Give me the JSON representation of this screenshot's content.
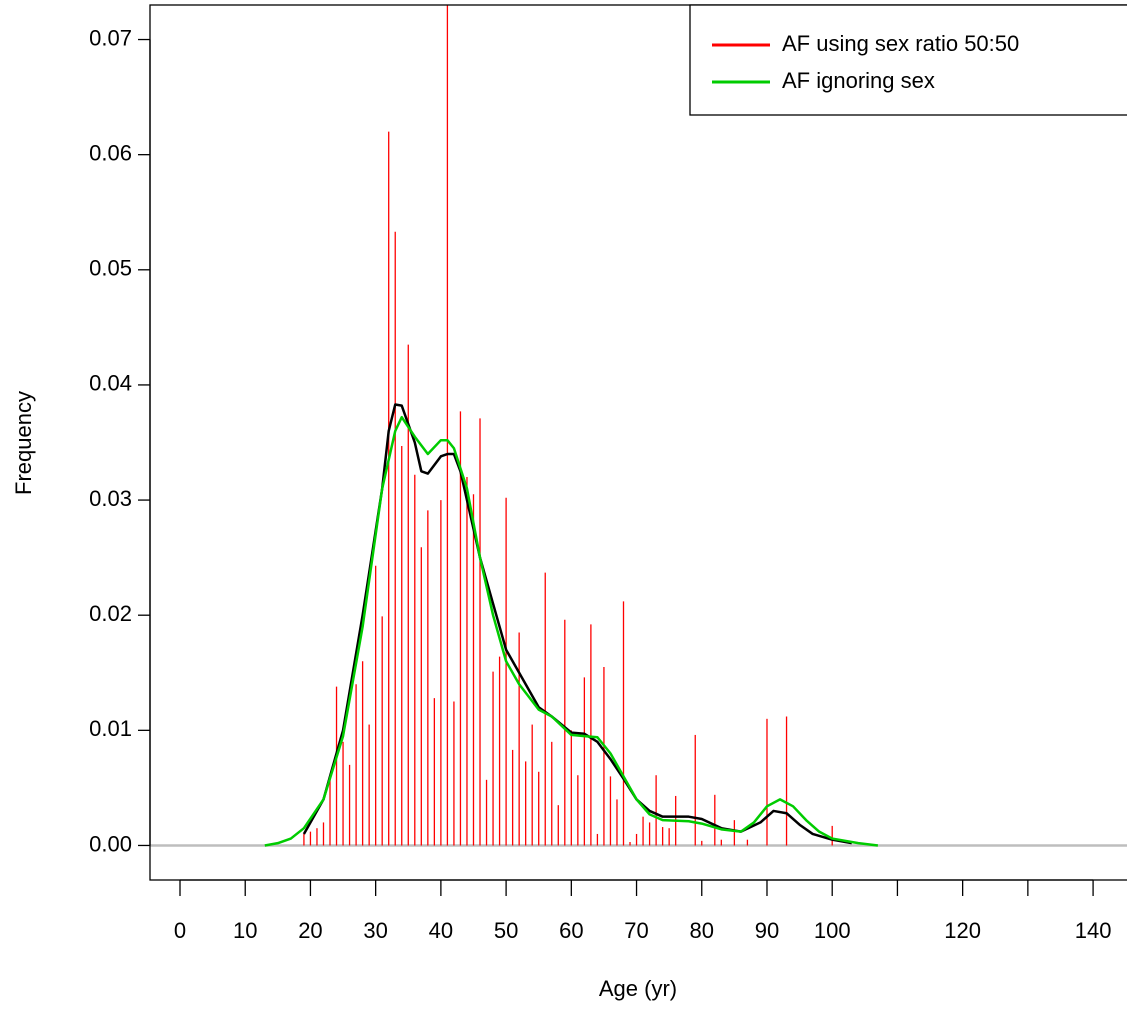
{
  "chart_data": {
    "type": "spike-density",
    "xlabel": "Age (yr)",
    "ylabel": "Frequency",
    "xlim": [
      -4.6,
      145.2
    ],
    "ylim": [
      -0.003,
      0.073
    ],
    "xticks": [
      0,
      10,
      20,
      30,
      40,
      50,
      60,
      70,
      80,
      90,
      100,
      120,
      140
    ],
    "xticks_unlabeled": [
      110,
      130
    ],
    "yticks": [
      {
        "value": 0,
        "label": "0.00"
      },
      0.01,
      0.02,
      0.03,
      0.04,
      0.05,
      0.06,
      0.07
    ],
    "hline": 0,
    "hline_color": "#bebebe",
    "legend": "top-right",
    "series": [
      {
        "name": "AF using sex ratio 50:50",
        "color": "#ff0000",
        "style": "spikes",
        "x": [
          19,
          20,
          21,
          22,
          23,
          24,
          25,
          26,
          27,
          28,
          29,
          30,
          31,
          32,
          33,
          34,
          35,
          36,
          37,
          38,
          39,
          40,
          41,
          42,
          43,
          44,
          45,
          46,
          47,
          48,
          49,
          50,
          51,
          52,
          53,
          54,
          55,
          56,
          57,
          58,
          59,
          60,
          61,
          62,
          63,
          64,
          65,
          66,
          67,
          68,
          69,
          70,
          71,
          72,
          73,
          74,
          75,
          76,
          79,
          80,
          82,
          83,
          85,
          87,
          90,
          93,
          100
        ],
        "values": [
          0.001,
          0.0012,
          0.0015,
          0.002,
          0.006,
          0.0138,
          0.009,
          0.007,
          0.014,
          0.016,
          0.0105,
          0.0243,
          0.0199,
          0.062,
          0.0533,
          0.0347,
          0.0435,
          0.0322,
          0.0259,
          0.0291,
          0.0128,
          0.03,
          0.075,
          0.0125,
          0.0377,
          0.032,
          0.0305,
          0.0371,
          0.0057,
          0.0151,
          0.0164,
          0.0302,
          0.0083,
          0.0185,
          0.0073,
          0.0105,
          0.0064,
          0.0237,
          0.009,
          0.0035,
          0.0196,
          0.01,
          0.0061,
          0.0146,
          0.0192,
          0.001,
          0.0155,
          0.006,
          0.004,
          0.0212,
          0.0003,
          0.001,
          0.0025,
          0.002,
          0.0061,
          0.0016,
          0.0015,
          0.0043,
          0.0096,
          0.0004,
          0.0044,
          0.0005,
          0.0022,
          0.0005,
          0.011,
          0.0112,
          0.0017
        ]
      },
      {
        "color": "#000000",
        "style": "line",
        "x": [
          19,
          22,
          25,
          28,
          31,
          32,
          33,
          34,
          36,
          37,
          38,
          40,
          41,
          42,
          43,
          44,
          46,
          48,
          50,
          52,
          55,
          57,
          60,
          62,
          64,
          66,
          68,
          70,
          72,
          74,
          78,
          80,
          83,
          86,
          89,
          91,
          93,
          95,
          97,
          100,
          103
        ],
        "values": [
          0.001,
          0.004,
          0.01,
          0.02,
          0.031,
          0.036,
          0.0383,
          0.0382,
          0.035,
          0.0325,
          0.0323,
          0.0338,
          0.034,
          0.034,
          0.0325,
          0.03,
          0.025,
          0.021,
          0.017,
          0.015,
          0.012,
          0.0112,
          0.0098,
          0.0097,
          0.009,
          0.0075,
          0.0058,
          0.004,
          0.003,
          0.0025,
          0.0025,
          0.0023,
          0.0015,
          0.0012,
          0.002,
          0.003,
          0.0028,
          0.0018,
          0.001,
          0.0005,
          0.0002
        ]
      },
      {
        "name": "AF ignoring sex",
        "color": "#00cc00",
        "style": "line",
        "x": [
          13,
          15,
          17,
          19,
          22,
          25,
          28,
          31,
          33,
          34,
          36,
          38,
          40,
          41,
          42,
          44,
          46,
          48,
          50,
          52,
          55,
          57,
          60,
          62,
          64,
          66,
          68,
          70,
          72,
          74,
          78,
          80,
          83,
          86,
          88,
          90,
          92,
          94,
          96,
          98,
          100,
          104,
          107
        ],
        "values": [
          0,
          0.0002,
          0.0006,
          0.0015,
          0.004,
          0.0095,
          0.019,
          0.031,
          0.036,
          0.0372,
          0.0355,
          0.034,
          0.0352,
          0.0352,
          0.0345,
          0.031,
          0.025,
          0.02,
          0.016,
          0.014,
          0.0118,
          0.0112,
          0.0096,
          0.0095,
          0.0094,
          0.008,
          0.006,
          0.004,
          0.0027,
          0.0022,
          0.0021,
          0.0019,
          0.0014,
          0.0012,
          0.002,
          0.0034,
          0.004,
          0.0034,
          0.0022,
          0.0012,
          0.0006,
          0.0002,
          0
        ]
      }
    ]
  }
}
